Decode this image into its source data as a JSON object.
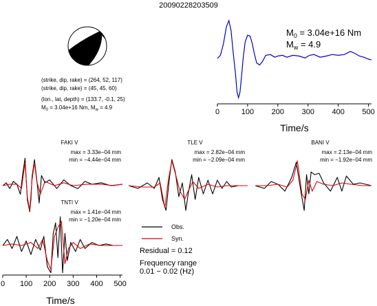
{
  "figure": {
    "event_id": "20090228203509",
    "mechanism": {
      "fault_plane_1": "(strike, dip, rake) = (264, 52, 117)",
      "fault_plane_2": "(strike, dip, rake) = (45, 45, 60)",
      "location": "(lon., lat, depth) = (133.7, -0.1, 25)",
      "m0_label": "M",
      "m0_sub": "0",
      "m0_value": " = 3.04e+16 Nm, ",
      "mw_label": "M",
      "mw_sub": "w",
      "mw_value": " = 4.9"
    },
    "source_time_function": {
      "m0_label": "M",
      "m0_sub": "0",
      "m0_value": " = 3.04e+16 Nm",
      "mw_label": "M",
      "mw_sub": "w",
      "mw_value": " = 4.9",
      "xlabel": "Time/s",
      "xticks": [
        "0",
        "100",
        "200",
        "300",
        "400",
        "500"
      ]
    },
    "legend": {
      "obs": "Obs.",
      "syn": "Syn.",
      "residual": "Residual = 0.12",
      "freq_title": "Frequency range",
      "freq_value": "0.01 − 0.02 (Hz)"
    },
    "waveform_axis": {
      "xlabel": "Time/s",
      "xticks": [
        "0",
        "100",
        "200",
        "300",
        "400",
        "500"
      ]
    },
    "stations": [
      {
        "name": "FAKI V",
        "max": "max = 3.33e−04 mm",
        "min": "min = −4.44e−04 mm"
      },
      {
        "name": "TLE V",
        "max": "max = 2.82e−04 mm",
        "min": "min = −2.09e−04 mm"
      },
      {
        "name": "BANI V",
        "max": "max = 2.13e−04 mm",
        "min": "min = −1.92e−04 mm"
      },
      {
        "name": "TNTI V",
        "max": "max = 1.41e−04 mm",
        "min": "min = −1.20e−04 mm"
      }
    ],
    "colors": {
      "observed": "#000000",
      "synthetic": "#dd0000",
      "stf": "#0000cc"
    }
  },
  "chart_data": [
    {
      "type": "line",
      "title": "",
      "xlabel": "Time/s",
      "ylabel": "",
      "xlim": [
        0,
        510
      ],
      "grid": false,
      "series": [
        {
          "values_x": [
            0,
            10,
            20,
            30,
            38,
            45,
            52,
            60,
            65,
            70,
            75,
            80,
            85,
            92,
            100,
            108,
            115,
            122,
            130,
            140,
            150,
            160,
            175,
            190,
            200,
            215,
            230,
            250,
            270,
            290,
            305,
            320,
            340,
            360,
            380,
            400,
            420,
            440,
            455,
            470,
            485,
            500,
            510
          ],
          "values_y": [
            0.02,
            0.1,
            0.4,
            0.85,
            1.0,
            0.75,
            0.2,
            -0.4,
            -0.85,
            -1.0,
            -0.85,
            -0.45,
            0.0,
            0.45,
            0.62,
            0.6,
            0.42,
            0.15,
            -0.1,
            -0.15,
            -0.05,
            0.1,
            0.12,
            0.05,
            0.08,
            0.1,
            0.05,
            0.1,
            0.08,
            0.03,
            0.1,
            0.12,
            0.05,
            0.08,
            0.12,
            0.1,
            0.12,
            0.2,
            0.15,
            0.08,
            0.05,
            0.0,
            -0.02
          ]
        }
      ]
    },
    {
      "type": "line",
      "title": "FAKI V",
      "xlim": [
        0,
        510
      ],
      "series": [
        {
          "name": "Obs.",
          "values_x": [
            0,
            15,
            30,
            45,
            60,
            75,
            85,
            95,
            105,
            115,
            120,
            125,
            135,
            145,
            155,
            165,
            180,
            200,
            230,
            260,
            290,
            320,
            350,
            380,
            420,
            460,
            510
          ],
          "values_y": [
            0,
            0.1,
            -0.1,
            0.15,
            0.05,
            -0.3,
            0.4,
            0.95,
            -0.5,
            -0.9,
            -0.5,
            0.3,
            0.9,
            0.2,
            -0.6,
            0.35,
            0.1,
            0.2,
            -0.1,
            0.2,
            0.0,
            -0.1,
            0.15,
            0.05,
            0.1,
            0.0,
            0.05
          ]
        },
        {
          "name": "Syn.",
          "values_x": [
            0,
            30,
            60,
            80,
            95,
            105,
            115,
            125,
            135,
            145,
            160,
            180,
            220,
            260,
            300,
            360,
            420,
            470,
            510
          ],
          "values_y": [
            0,
            0.05,
            0.05,
            -0.1,
            0.8,
            -0.4,
            -0.85,
            0.2,
            0.8,
            0.15,
            -0.3,
            0.15,
            0.0,
            0.1,
            0.0,
            0.05,
            0.05,
            0.0,
            0.05
          ]
        }
      ]
    },
    {
      "type": "line",
      "title": "TLE V",
      "xlim": [
        0,
        510
      ],
      "series": [
        {
          "name": "Obs.",
          "values_x": [
            0,
            40,
            80,
            110,
            130,
            145,
            160,
            175,
            185,
            200,
            215,
            230,
            245,
            255,
            270,
            285,
            300,
            320,
            340,
            360,
            380,
            400,
            420,
            440,
            470,
            510
          ],
          "values_y": [
            0,
            -0.1,
            0.1,
            -0.1,
            0.3,
            -0.5,
            -0.9,
            0.3,
            0.95,
            0.5,
            -0.4,
            0.1,
            -0.9,
            -0.3,
            0.4,
            -0.5,
            0.3,
            -0.3,
            0.2,
            -0.3,
            0.2,
            -0.1,
            0.15,
            -0.05,
            0.0,
            0.0
          ]
        },
        {
          "name": "Syn.",
          "values_x": [
            0,
            60,
            110,
            135,
            155,
            170,
            185,
            200,
            220,
            240,
            255,
            275,
            300,
            340,
            380,
            420,
            470,
            510
          ],
          "values_y": [
            0,
            -0.05,
            -0.05,
            0.1,
            -0.8,
            0.2,
            0.9,
            0.45,
            -0.2,
            -0.5,
            -0.2,
            0.15,
            -0.1,
            0.05,
            -0.05,
            0.0,
            0.0,
            0.0
          ]
        }
      ]
    },
    {
      "type": "line",
      "title": "BANI V",
      "xlim": [
        0,
        510
      ],
      "series": [
        {
          "name": "Obs.",
          "values_x": [
            0,
            40,
            70,
            100,
            130,
            160,
            180,
            200,
            215,
            225,
            235,
            245,
            260,
            280,
            300,
            330,
            360,
            380,
            400,
            430,
            460,
            510
          ],
          "values_y": [
            0,
            -0.1,
            0.15,
            0.05,
            -0.2,
            0.3,
            0.85,
            -0.2,
            -0.9,
            0.4,
            -0.3,
            0.5,
            0.4,
            0.45,
            0.1,
            -0.2,
            0.3,
            -0.2,
            0.35,
            0.05,
            0.1,
            0.0
          ]
        },
        {
          "name": "Syn.",
          "values_x": [
            0,
            50,
            100,
            140,
            165,
            185,
            205,
            220,
            235,
            250,
            270,
            300,
            340,
            380,
            420,
            470,
            510
          ],
          "values_y": [
            0,
            0.0,
            0.05,
            -0.05,
            0.2,
            0.9,
            -0.3,
            -0.5,
            0.2,
            -0.2,
            0.15,
            0.05,
            0.0,
            0.1,
            0.05,
            0.0,
            0.0
          ]
        }
      ]
    },
    {
      "type": "line",
      "title": "TNTI V",
      "xlim": [
        0,
        510
      ],
      "series": [
        {
          "name": "Obs.",
          "values_x": [
            0,
            20,
            40,
            60,
            80,
            100,
            120,
            140,
            160,
            175,
            190,
            205,
            215,
            225,
            235,
            245,
            255,
            265,
            275,
            290,
            310,
            330,
            350,
            380,
            410,
            440,
            470,
            510
          ],
          "values_y": [
            0,
            0.2,
            -0.1,
            0.3,
            -0.2,
            0.15,
            -0.3,
            0.2,
            -0.15,
            0.3,
            -0.7,
            -0.9,
            0.4,
            0.75,
            -0.4,
            0.95,
            -0.9,
            0.4,
            -0.5,
            0.1,
            -0.2,
            0.2,
            -0.1,
            0.1,
            0.0,
            0.05,
            0.0,
            0.0
          ]
        },
        {
          "name": "Syn.",
          "values_x": [
            0,
            40,
            80,
            120,
            150,
            170,
            190,
            205,
            220,
            235,
            250,
            265,
            280,
            300,
            330,
            370,
            420,
            470,
            510
          ],
          "values_y": [
            0,
            0.05,
            0.0,
            0.1,
            -0.1,
            0.2,
            -0.5,
            -0.8,
            0.3,
            0.6,
            0.8,
            -0.6,
            -0.1,
            0.1,
            -0.1,
            0.05,
            0.0,
            0.0,
            0.0
          ]
        }
      ]
    }
  ]
}
